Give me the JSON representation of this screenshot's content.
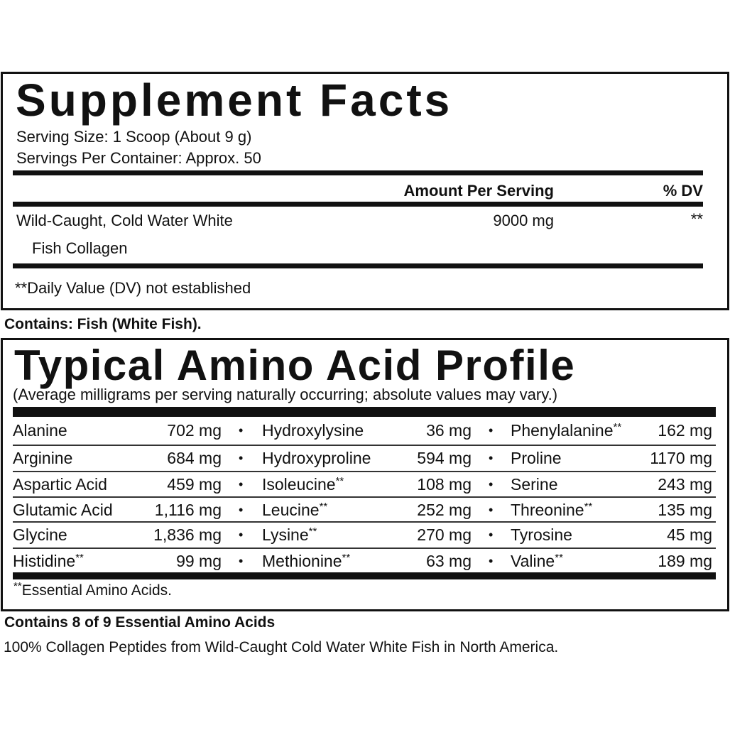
{
  "supplement_facts": {
    "title": "Supplement Facts",
    "serving_size": "Serving Size: 1 Scoop (About 9 g)",
    "servings_per_container": "Servings Per Container: Approx. 50",
    "header_amount": "Amount Per Serving",
    "header_dv": "% DV",
    "ingredient_line1": "Wild-Caught, Cold Water White",
    "ingredient_line2": "Fish Collagen",
    "ingredient_amount": "9000 mg",
    "ingredient_dv": "**",
    "footnote": "**Daily Value (DV) not established"
  },
  "contains": "Contains: Fish (White Fish).",
  "amino_profile": {
    "title": "Typical Amino Acid Profile",
    "subtitle": "(Average milligrams per serving naturally occurring; absolute values may vary.)",
    "bullet": "•",
    "rows": [
      [
        {
          "name": "Alanine",
          "mark": "",
          "value": "702 mg"
        },
        {
          "name": "Hydroxylysine",
          "mark": "",
          "value": "36 mg"
        },
        {
          "name": "Phenylalanine",
          "mark": "**",
          "value": "162 mg"
        }
      ],
      [
        {
          "name": "Arginine",
          "mark": "",
          "value": "684 mg"
        },
        {
          "name": "Hydroxyproline",
          "mark": "",
          "value": "594 mg"
        },
        {
          "name": "Proline",
          "mark": "",
          "value": "1170 mg"
        }
      ],
      [
        {
          "name": "Aspartic Acid",
          "mark": "",
          "value": "459 mg"
        },
        {
          "name": "Isoleucine",
          "mark": "**",
          "value": "108 mg"
        },
        {
          "name": "Serine",
          "mark": "",
          "value": "243 mg"
        }
      ],
      [
        {
          "name": "Glutamic Acid",
          "mark": "",
          "value": "1,116 mg"
        },
        {
          "name": "Leucine",
          "mark": "**",
          "value": "252 mg"
        },
        {
          "name": "Threonine",
          "mark": "**",
          "value": "135 mg"
        }
      ],
      [
        {
          "name": "Glycine",
          "mark": "",
          "value": "1,836 mg"
        },
        {
          "name": "Lysine",
          "mark": "**",
          "value": "270 mg"
        },
        {
          "name": "Tyrosine",
          "mark": "",
          "value": "45 mg"
        }
      ],
      [
        {
          "name": "Histidine",
          "mark": "**",
          "value": "99 mg"
        },
        {
          "name": "Methionine",
          "mark": "**",
          "value": "63 mg"
        },
        {
          "name": "Valine",
          "mark": "**",
          "value": "189 mg"
        }
      ]
    ],
    "footnote_mark": "**",
    "footnote": "Essential Amino Acids."
  },
  "essential_note": "Contains 8 of 9 Essential Amino Acids",
  "source_note": "100% Collagen Peptides from Wild-Caught Cold Water White Fish in North America."
}
